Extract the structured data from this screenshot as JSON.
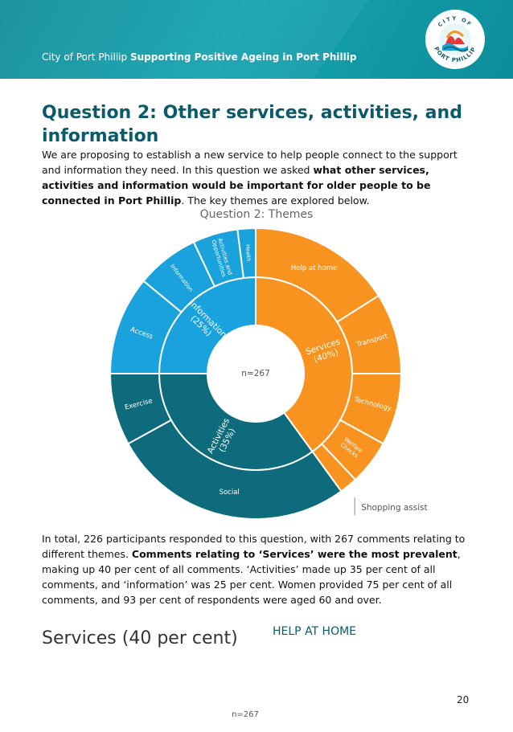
{
  "header": {
    "org": "City of Port Phillip",
    "title": "Supporting Positive Ageing in Port Phillip",
    "logo_text_top": "CITY OF",
    "logo_text_bottom": "PORT PHILLIP"
  },
  "heading": "Question 2: Other services, activities, and information",
  "intro": {
    "part1": "We are proposing to establish a new service to help people connect to the support and information they need. In this question we asked ",
    "bold": "what other services, activities and information would be important for older people to be connected in Port Phillip",
    "part2": ". The key themes are explored below."
  },
  "chart_data": {
    "type": "sunburst",
    "title": "Question 2: Themes",
    "center_label": "n=267",
    "inner": [
      {
        "name": "Services",
        "label": "Services (40%)",
        "value": 40,
        "color": "#f7931e"
      },
      {
        "name": "Activities",
        "label": "Activities (35%)",
        "value": 35,
        "color": "#0d6b7c"
      },
      {
        "name": "Information",
        "label": "Information (25%)",
        "value": 25,
        "color": "#1aa2dd"
      }
    ],
    "outer": [
      {
        "name": "Help at home",
        "parent": "Services",
        "value": 16,
        "color": "#f7931e"
      },
      {
        "name": "Transport",
        "parent": "Services",
        "value": 9,
        "color": "#f7931e"
      },
      {
        "name": "Technology",
        "parent": "Services",
        "value": 8,
        "color": "#f7931e"
      },
      {
        "name": "Welfare Checks",
        "parent": "Services",
        "value": 5,
        "color": "#f7931e"
      },
      {
        "name": "Shopping assist",
        "parent": "Services",
        "value": 2,
        "color": "#f7931e"
      },
      {
        "name": "Social",
        "parent": "Activities",
        "value": 27,
        "color": "#0d6b7c"
      },
      {
        "name": "Exercise",
        "parent": "Activities",
        "value": 8,
        "color": "#0d6b7c"
      },
      {
        "name": "Access",
        "parent": "Information",
        "value": 11,
        "color": "#1aa2dd"
      },
      {
        "name": "Information",
        "parent": "Information",
        "value": 7,
        "color": "#1aa2dd"
      },
      {
        "name": "Activities and Opportunities",
        "parent": "Information",
        "value": 5,
        "color": "#1aa2dd"
      },
      {
        "name": "Health",
        "parent": "Information",
        "value": 2,
        "color": "#1aa2dd"
      }
    ],
    "callout": "Shopping assist"
  },
  "summary": {
    "part1": "In total, 226 participants responded to this question, with 267 comments relating to different themes. ",
    "bold": "Comments relating to ‘Services’ were the most prevalent",
    "part2": ", making up 40 per cent of all comments. ‘Activities’ made up 35 per cent of all comments, and ‘information’ was 25 per cent. Women provided 75 per cent of all comments, and 93 per cent of respondents were aged 60 and over."
  },
  "section_heading": "Services (40 per cent)",
  "subheading": "HELP AT HOME",
  "page_number": "20",
  "footnote": "n=267"
}
